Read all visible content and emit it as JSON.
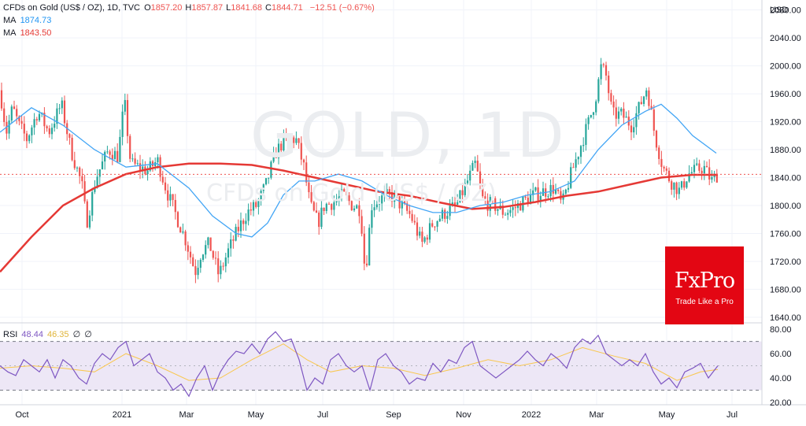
{
  "header": {
    "symbol": "CFDs on Gold (US$ / OZ), 1D, TVC",
    "ohlc": [
      {
        "k": "O",
        "v": "1857.20"
      },
      {
        "k": "H",
        "v": "1857.87"
      },
      {
        "k": "L",
        "v": "1841.68"
      },
      {
        "k": "C",
        "v": "1844.71"
      }
    ],
    "change": "−12.51 (−0.67%)",
    "ma1_label": "MA",
    "ma1_value": "1874.73",
    "ma2_label": "MA",
    "ma2_value": "1843.50",
    "rsi_label": "RSI",
    "rsi_value": "48.44",
    "rsi_ma_value": "46.35",
    "rsi_extra1": "∅",
    "rsi_extra2": "∅"
  },
  "watermark": {
    "main": "GOLD, 1D",
    "sub": "CFDs on Gold (US$ / OZ)"
  },
  "logo": {
    "brand": "FxPro",
    "tagline": "Trade Like a Pro"
  },
  "colors": {
    "up": "#26a69a",
    "down": "#ef5350",
    "ma_fast": "#42a5f5",
    "ma_slow": "#e53935",
    "rsi": "#7e57c2",
    "rsi_ma": "#f9c74f",
    "rsi_band": "#ede7f6",
    "logo": "#e30613"
  },
  "chart_data": {
    "type": "candlestick",
    "currency": "USD",
    "price_ticks": [
      "2080.00",
      "2040.00",
      "2000.00",
      "1960.00",
      "1920.00",
      "1880.00",
      "1840.00",
      "1800.00",
      "1760.00",
      "1720.00",
      "1680.00",
      "1640.00"
    ],
    "ylim": [
      1632,
      2092
    ],
    "last_price": 1844.71,
    "x_labels": [
      "Oct",
      "2021",
      "Mar",
      "May",
      "Jul",
      "Sep",
      "Nov",
      "2022",
      "Mar",
      "May",
      "Jul"
    ],
    "price_path": [
      [
        0,
        1965
      ],
      [
        8,
        1905
      ],
      [
        16,
        1940
      ],
      [
        24,
        1915
      ],
      [
        34,
        1895
      ],
      [
        48,
        1935
      ],
      [
        62,
        1905
      ],
      [
        78,
        1945
      ],
      [
        90,
        1880
      ],
      [
        104,
        1830
      ],
      [
        110,
        1775
      ],
      [
        122,
        1840
      ],
      [
        138,
        1880
      ],
      [
        150,
        1870
      ],
      [
        158,
        1950
      ],
      [
        166,
        1860
      ],
      [
        176,
        1855
      ],
      [
        188,
        1850
      ],
      [
        200,
        1865
      ],
      [
        212,
        1820
      ],
      [
        224,
        1785
      ],
      [
        236,
        1750
      ],
      [
        248,
        1705
      ],
      [
        256,
        1735
      ],
      [
        266,
        1745
      ],
      [
        278,
        1700
      ],
      [
        290,
        1735
      ],
      [
        302,
        1765
      ],
      [
        314,
        1790
      ],
      [
        326,
        1800
      ],
      [
        338,
        1830
      ],
      [
        350,
        1875
      ],
      [
        362,
        1895
      ],
      [
        376,
        1895
      ],
      [
        386,
        1855
      ],
      [
        394,
        1800
      ],
      [
        404,
        1775
      ],
      [
        412,
        1800
      ],
      [
        424,
        1805
      ],
      [
        436,
        1815
      ],
      [
        448,
        1800
      ],
      [
        458,
        1795
      ],
      [
        464,
        1700
      ],
      [
        472,
        1800
      ],
      [
        484,
        1810
      ],
      [
        496,
        1815
      ],
      [
        510,
        1800
      ],
      [
        522,
        1785
      ],
      [
        536,
        1745
      ],
      [
        550,
        1775
      ],
      [
        566,
        1790
      ],
      [
        580,
        1800
      ],
      [
        592,
        1830
      ],
      [
        604,
        1860
      ],
      [
        614,
        1805
      ],
      [
        628,
        1800
      ],
      [
        640,
        1790
      ],
      [
        652,
        1795
      ],
      [
        664,
        1805
      ],
      [
        678,
        1815
      ],
      [
        690,
        1820
      ],
      [
        704,
        1825
      ],
      [
        714,
        1800
      ],
      [
        724,
        1840
      ],
      [
        736,
        1880
      ],
      [
        748,
        1920
      ],
      [
        756,
        1950
      ],
      [
        764,
        2000
      ],
      [
        770,
        1985
      ],
      [
        778,
        1930
      ],
      [
        790,
        1930
      ],
      [
        802,
        1915
      ],
      [
        812,
        1940
      ],
      [
        822,
        1970
      ],
      [
        832,
        1900
      ],
      [
        842,
        1855
      ],
      [
        852,
        1835
      ],
      [
        864,
        1820
      ],
      [
        874,
        1845
      ],
      [
        884,
        1850
      ],
      [
        894,
        1855
      ],
      [
        904,
        1835
      ],
      [
        912,
        1845
      ]
    ],
    "ma_fast_path": [
      [
        0,
        1905
      ],
      [
        40,
        1940
      ],
      [
        80,
        1915
      ],
      [
        120,
        1880
      ],
      [
        160,
        1855
      ],
      [
        200,
        1860
      ],
      [
        240,
        1825
      ],
      [
        270,
        1785
      ],
      [
        300,
        1760
      ],
      [
        320,
        1755
      ],
      [
        340,
        1775
      ],
      [
        360,
        1815
      ],
      [
        380,
        1835
      ],
      [
        400,
        1835
      ],
      [
        430,
        1845
      ],
      [
        460,
        1835
      ],
      [
        490,
        1815
      ],
      [
        520,
        1800
      ],
      [
        550,
        1790
      ],
      [
        580,
        1790
      ],
      [
        610,
        1800
      ],
      [
        640,
        1805
      ],
      [
        670,
        1815
      ],
      [
        700,
        1820
      ],
      [
        730,
        1835
      ],
      [
        760,
        1880
      ],
      [
        790,
        1915
      ],
      [
        820,
        1935
      ],
      [
        840,
        1945
      ],
      [
        860,
        1925
      ],
      [
        880,
        1900
      ],
      [
        910,
        1875
      ]
    ],
    "ma_slow_path": [
      [
        0,
        1705
      ],
      [
        40,
        1755
      ],
      [
        80,
        1800
      ],
      [
        120,
        1825
      ],
      [
        160,
        1845
      ],
      [
        200,
        1855
      ],
      [
        240,
        1860
      ],
      [
        280,
        1860
      ],
      [
        320,
        1858
      ],
      [
        360,
        1850
      ],
      [
        400,
        1840
      ],
      [
        440,
        1830
      ],
      [
        480,
        1820
      ],
      [
        520,
        1814
      ],
      [
        560,
        1804
      ],
      [
        600,
        1795
      ],
      [
        640,
        1798
      ],
      [
        680,
        1805
      ],
      [
        720,
        1814
      ],
      [
        760,
        1820
      ],
      [
        800,
        1830
      ],
      [
        840,
        1840
      ],
      [
        880,
        1844
      ],
      [
        912,
        1844
      ]
    ],
    "rsi": {
      "ticks": [
        "80.00",
        "60.00",
        "40.00",
        "20.00"
      ],
      "ylim": [
        18,
        84
      ],
      "upper": 70,
      "lower": 30,
      "path": [
        [
          0,
          50
        ],
        [
          10,
          45
        ],
        [
          20,
          42
        ],
        [
          30,
          55
        ],
        [
          40,
          50
        ],
        [
          50,
          45
        ],
        [
          60,
          55
        ],
        [
          70,
          40
        ],
        [
          80,
          55
        ],
        [
          90,
          50
        ],
        [
          100,
          40
        ],
        [
          110,
          35
        ],
        [
          120,
          52
        ],
        [
          130,
          60
        ],
        [
          140,
          55
        ],
        [
          150,
          65
        ],
        [
          160,
          70
        ],
        [
          170,
          50
        ],
        [
          180,
          55
        ],
        [
          190,
          60
        ],
        [
          200,
          45
        ],
        [
          210,
          40
        ],
        [
          220,
          30
        ],
        [
          230,
          35
        ],
        [
          240,
          25
        ],
        [
          250,
          40
        ],
        [
          260,
          50
        ],
        [
          270,
          30
        ],
        [
          280,
          45
        ],
        [
          290,
          55
        ],
        [
          300,
          62
        ],
        [
          310,
          60
        ],
        [
          320,
          68
        ],
        [
          330,
          60
        ],
        [
          340,
          72
        ],
        [
          350,
          78
        ],
        [
          360,
          70
        ],
        [
          370,
          72
        ],
        [
          380,
          55
        ],
        [
          390,
          30
        ],
        [
          400,
          40
        ],
        [
          410,
          35
        ],
        [
          420,
          55
        ],
        [
          430,
          60
        ],
        [
          440,
          50
        ],
        [
          450,
          45
        ],
        [
          460,
          50
        ],
        [
          470,
          30
        ],
        [
          480,
          55
        ],
        [
          490,
          60
        ],
        [
          500,
          50
        ],
        [
          510,
          45
        ],
        [
          520,
          35
        ],
        [
          530,
          40
        ],
        [
          540,
          38
        ],
        [
          550,
          52
        ],
        [
          560,
          45
        ],
        [
          570,
          55
        ],
        [
          580,
          52
        ],
        [
          590,
          65
        ],
        [
          600,
          70
        ],
        [
          610,
          50
        ],
        [
          620,
          45
        ],
        [
          630,
          40
        ],
        [
          640,
          45
        ],
        [
          650,
          50
        ],
        [
          660,
          55
        ],
        [
          670,
          62
        ],
        [
          680,
          55
        ],
        [
          690,
          50
        ],
        [
          700,
          60
        ],
        [
          710,
          55
        ],
        [
          720,
          48
        ],
        [
          730,
          65
        ],
        [
          740,
          72
        ],
        [
          750,
          68
        ],
        [
          760,
          75
        ],
        [
          770,
          60
        ],
        [
          780,
          55
        ],
        [
          790,
          50
        ],
        [
          800,
          55
        ],
        [
          810,
          50
        ],
        [
          820,
          60
        ],
        [
          830,
          45
        ],
        [
          840,
          35
        ],
        [
          850,
          40
        ],
        [
          860,
          32
        ],
        [
          870,
          45
        ],
        [
          880,
          48
        ],
        [
          890,
          52
        ],
        [
          900,
          40
        ],
        [
          912,
          50
        ]
      ],
      "ma_path": [
        [
          0,
          48
        ],
        [
          40,
          50
        ],
        [
          80,
          48
        ],
        [
          120,
          45
        ],
        [
          160,
          60
        ],
        [
          200,
          50
        ],
        [
          240,
          38
        ],
        [
          280,
          40
        ],
        [
          320,
          55
        ],
        [
          360,
          68
        ],
        [
          390,
          55
        ],
        [
          420,
          45
        ],
        [
          460,
          50
        ],
        [
          500,
          48
        ],
        [
          540,
          42
        ],
        [
          580,
          48
        ],
        [
          620,
          55
        ],
        [
          660,
          50
        ],
        [
          700,
          55
        ],
        [
          740,
          65
        ],
        [
          780,
          58
        ],
        [
          820,
          52
        ],
        [
          860,
          38
        ],
        [
          890,
          45
        ],
        [
          912,
          47
        ]
      ]
    }
  }
}
